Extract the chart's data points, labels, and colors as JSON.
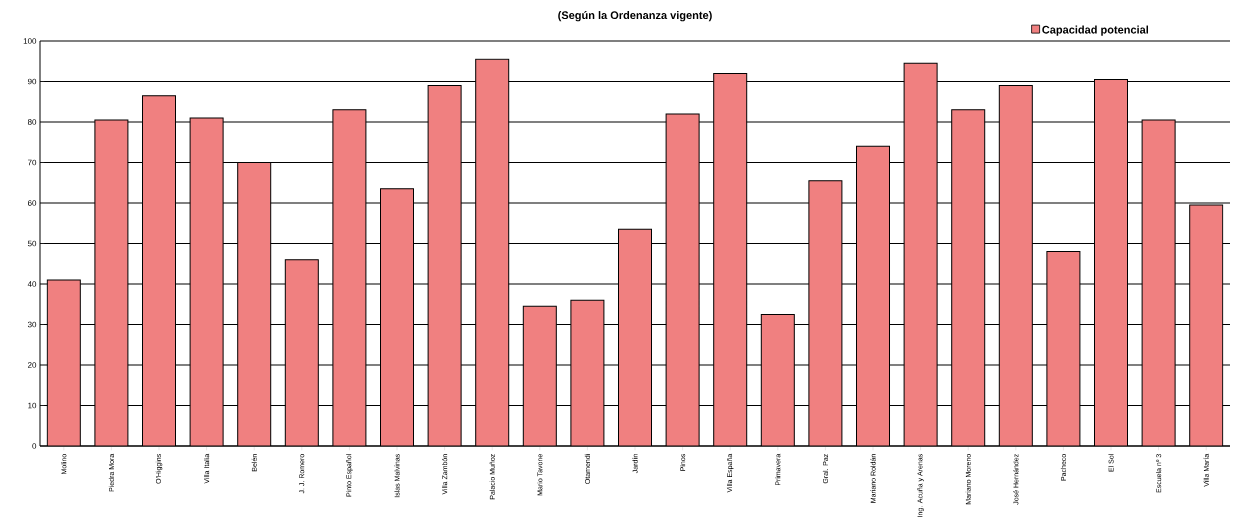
{
  "chart_data": {
    "type": "bar",
    "title": "(Según la Ordenanza vigente)",
    "categories": [
      "Molino",
      "Piedra Mora",
      "O'Higgins",
      "Villa Italia",
      "Belén",
      "J. J. Romero",
      "Pinto Español",
      "Islas Malvinas",
      "Villa Zambón",
      "Palacio Muñoz",
      "Mario Tavone",
      "Otamendi",
      "Jardín",
      "Pinos",
      "Villa España",
      "Primavera",
      "Gral. Paz",
      "Mariano Roldán",
      "Ing. Acuña y Arenas",
      "Mariano Moreno",
      "José Hernández",
      "Pacheco",
      "El Sol",
      "Escuela nº 3",
      "Villa María"
    ],
    "series": [
      {
        "name": "Capacidad potencial",
        "color": "#f08080",
        "values": [
          41,
          80.5,
          86.5,
          81,
          70,
          46,
          83,
          63.5,
          89,
          95.5,
          34.5,
          36,
          53.5,
          82,
          92,
          32.5,
          65.5,
          74,
          94.5,
          83,
          89,
          48,
          90.5,
          80.5,
          59.5
        ]
      }
    ],
    "ylim": [
      0,
      100
    ],
    "yticks": [
      0,
      10,
      20,
      30,
      40,
      50,
      60,
      70,
      80,
      90,
      100
    ],
    "grid": "y",
    "legend": "top right"
  }
}
